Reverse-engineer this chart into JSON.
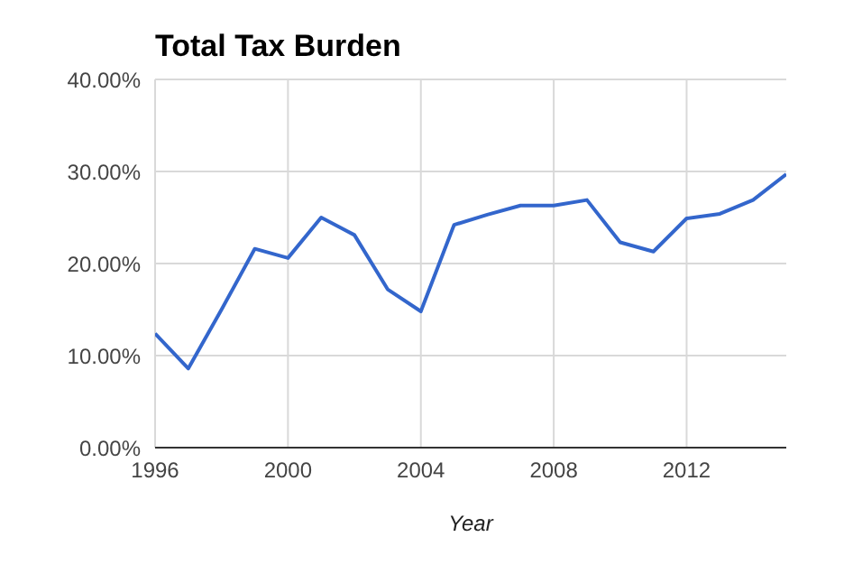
{
  "chart_data": {
    "type": "line",
    "title": "Total Tax Burden",
    "xlabel": "Year",
    "x": [
      1996,
      1997,
      1998,
      1999,
      2000,
      2001,
      2002,
      2003,
      2004,
      2005,
      2006,
      2007,
      2008,
      2009,
      2010,
      2011,
      2012,
      2013,
      2014,
      2015
    ],
    "series": [
      {
        "color": "#3366cc",
        "values": [
          12.4,
          8.6,
          15.0,
          21.6,
          20.6,
          25.0,
          23.1,
          17.2,
          14.8,
          24.2,
          25.3,
          26.3,
          26.3,
          26.9,
          22.3,
          21.3,
          24.9,
          25.4,
          26.9,
          29.7
        ]
      }
    ],
    "xlim": [
      1996,
      2015
    ],
    "xticks": [
      1996,
      2000,
      2004,
      2008,
      2012
    ],
    "ylim": [
      0,
      40
    ],
    "yticks": [
      {
        "value": 0,
        "label": "0.00%"
      },
      {
        "value": 10,
        "label": "10.00%"
      },
      {
        "value": 20,
        "label": "20.00%"
      },
      {
        "value": 30,
        "label": "30.00%"
      },
      {
        "value": 40,
        "label": "40.00%"
      }
    ],
    "grid": true,
    "legend": false,
    "marker": "none",
    "line_style": "solid"
  }
}
